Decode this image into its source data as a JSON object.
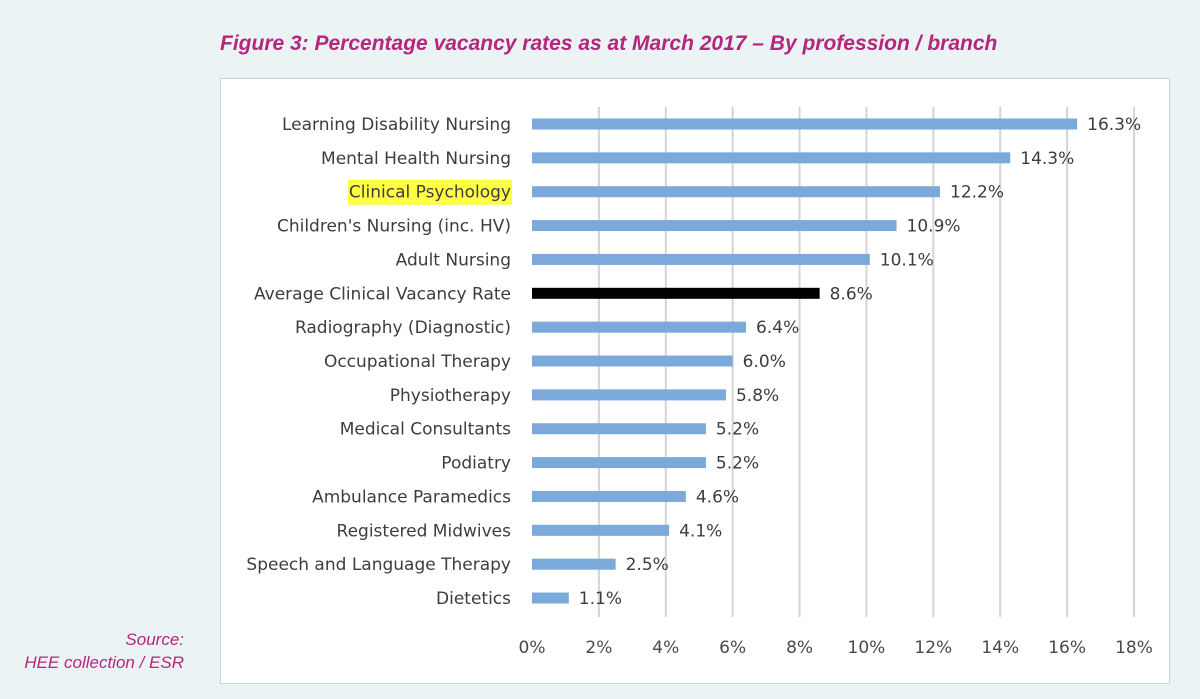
{
  "figure": {
    "title": "Figure 3: Percentage vacancy rates as at March 2017 – By profession / branch"
  },
  "source": {
    "line1": "Source:",
    "line2": "HEE collection / ESR"
  },
  "chart_data": {
    "type": "bar",
    "orientation": "horizontal",
    "title": "",
    "xlabel": "",
    "ylabel": "",
    "xlim": [
      0,
      18
    ],
    "x_ticks": [
      "0%",
      "2%",
      "4%",
      "6%",
      "8%",
      "10%",
      "12%",
      "14%",
      "16%",
      "18%"
    ],
    "grid": "vertical",
    "categories": [
      "Learning Disability Nursing",
      "Mental Health Nursing",
      "Clinical Psychology",
      "Children's Nursing (inc. HV)",
      "Adult Nursing",
      "Average Clinical Vacancy Rate",
      "Radiography (Diagnostic)",
      "Occupational Therapy",
      "Physiotherapy",
      "Medical Consultants",
      "Podiatry",
      "Ambulance Paramedics",
      "Registered Midwives",
      "Speech and Language Therapy",
      "Dietetics"
    ],
    "values": [
      16.3,
      14.3,
      12.2,
      10.9,
      10.1,
      8.6,
      6.4,
      6.0,
      5.8,
      5.2,
      5.2,
      4.6,
      4.1,
      2.5,
      1.1
    ],
    "value_labels": [
      "16.3%",
      "14.3%",
      "12.2%",
      "10.9%",
      "10.1%",
      "8.6%",
      "6.4%",
      "6.0%",
      "5.8%",
      "5.2%",
      "5.2%",
      "4.6%",
      "4.1%",
      "2.5%",
      "1.1%"
    ],
    "highlighted_category": "Clinical Psychology",
    "highlight_color": "#ffff44",
    "bar_color": "#7aa9da",
    "average_bar_color": "#000000",
    "average_category": "Average Clinical Vacancy Rate",
    "gridline_color": "#d4d4d4"
  }
}
